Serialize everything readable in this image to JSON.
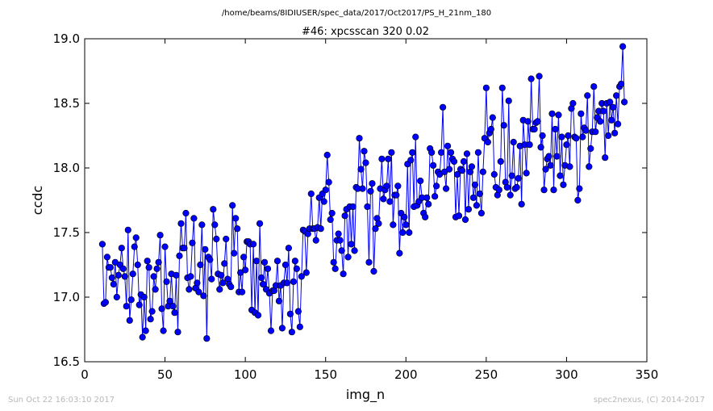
{
  "header": {
    "supertitle": "/home/beams/8IDIUSER/spec_data/2017/Oct2017/PS_H_21nm_180",
    "title": "#46: xpcsscan 320 0.02"
  },
  "footer": {
    "timestamp": "Sun Oct 22 16:03:10 2017",
    "credit": "spec2nexus, (C) 2014-2017"
  },
  "chart_data": {
    "type": "line",
    "xlabel": "img_n",
    "ylabel": "ccdc",
    "xlim": [
      0,
      350
    ],
    "ylim": [
      16.5,
      19.0
    ],
    "xticks": [
      0,
      50,
      100,
      150,
      200,
      250,
      300,
      350
    ],
    "yticks": [
      16.5,
      17.0,
      17.5,
      18.0,
      18.5,
      19.0
    ],
    "xtick_labels": [
      "0",
      "50",
      "100",
      "150",
      "200",
      "250",
      "300",
      "350"
    ],
    "ytick_labels": [
      "16.5",
      "17.0",
      "17.5",
      "18.0",
      "18.5",
      "19.0"
    ],
    "grid": false,
    "line_color": "#0000ff",
    "marker": "circle",
    "series": [
      {
        "x_start": 11,
        "x_step": 1,
        "y": [
          17.41,
          16.95,
          16.96,
          17.31,
          17.23,
          17.23,
          17.15,
          17.1,
          17.27,
          17.0,
          17.17,
          17.25,
          17.38,
          17.22,
          17.16,
          16.93,
          17.52,
          16.82,
          16.98,
          17.18,
          17.39,
          17.46,
          17.25,
          16.94,
          17.02,
          16.69,
          17.0,
          16.74,
          17.28,
          17.23,
          16.83,
          16.89,
          17.16,
          17.06,
          17.22,
          17.27,
          17.48,
          16.91,
          16.74,
          17.39,
          17.12,
          16.93,
          16.97,
          17.18,
          16.93,
          16.88,
          17.17,
          16.73,
          17.32,
          17.57,
          17.38,
          17.38,
          17.65,
          17.15,
          17.06,
          17.16,
          17.42,
          17.61,
          17.07,
          17.11,
          17.04,
          17.25,
          17.56,
          17.01,
          17.37,
          16.68,
          17.31,
          17.29,
          17.14,
          17.68,
          17.56,
          17.45,
          17.18,
          17.06,
          17.17,
          17.11,
          17.26,
          17.45,
          17.14,
          17.1,
          17.08,
          17.71,
          17.34,
          17.61,
          17.53,
          17.04,
          17.19,
          17.04,
          17.31,
          17.21,
          17.43,
          17.43,
          17.41,
          16.9,
          17.41,
          16.88,
          17.28,
          16.86,
          17.57,
          17.15,
          17.1,
          17.27,
          17.06,
          17.22,
          17.03,
          16.74,
          17.05,
          17.05,
          17.09,
          17.28,
          16.97,
          17.09,
          16.76,
          17.11,
          17.25,
          17.11,
          17.38,
          16.87,
          16.73,
          17.12,
          17.28,
          17.22,
          16.89,
          16.77,
          17.16,
          17.52,
          17.51,
          17.19,
          17.49,
          17.53,
          17.8,
          17.53,
          17.53,
          17.44,
          17.54,
          17.77,
          17.53,
          17.8,
          17.74,
          17.83,
          18.1,
          17.89,
          17.6,
          17.65,
          17.27,
          17.22,
          17.44,
          17.49,
          17.44,
          17.36,
          17.18,
          17.63,
          17.68,
          17.31,
          17.7,
          17.41,
          17.7,
          17.36,
          17.85,
          17.84,
          18.23,
          17.99,
          17.84,
          18.13,
          18.04,
          17.7,
          17.27,
          17.82,
          17.88,
          17.2,
          17.53,
          17.61,
          17.57,
          17.84,
          18.07,
          17.76,
          17.83,
          17.86,
          18.07,
          17.74,
          18.12,
          17.56,
          17.79,
          17.79,
          17.86,
          17.34,
          17.65,
          17.5,
          17.62,
          17.56,
          18.03,
          17.5,
          18.06,
          18.12,
          17.7,
          18.24,
          17.71,
          17.74,
          17.9,
          17.77,
          17.65,
          17.62,
          17.77,
          17.72,
          18.15,
          18.12,
          18.02,
          17.78,
          17.86,
          17.97,
          17.95,
          18.12,
          18.47,
          17.97,
          17.84,
          18.17,
          17.99,
          18.12,
          18.07,
          18.05,
          17.62,
          17.95,
          17.63,
          17.99,
          17.98,
          18.05,
          17.6,
          18.11,
          17.68,
          17.97,
          18.01,
          17.77,
          17.87,
          17.71,
          18.12,
          17.8,
          17.65,
          17.97,
          18.23,
          18.62,
          18.2,
          18.27,
          18.3,
          18.39,
          17.95,
          17.85,
          17.79,
          17.83,
          18.05,
          18.62,
          18.33,
          17.89,
          17.85,
          18.52,
          17.79,
          17.94,
          18.2,
          17.84,
          17.85,
          17.92,
          18.17,
          17.72,
          18.37,
          18.18,
          17.96,
          18.36,
          18.18,
          18.69,
          18.3,
          18.3,
          18.35,
          18.36,
          18.71,
          18.16,
          18.25,
          17.83,
          17.99,
          18.07,
          18.09,
          18.02,
          18.42,
          17.83,
          18.3,
          18.09,
          18.41,
          17.94,
          18.24,
          17.87,
          18.02,
          18.18,
          18.25,
          18.01,
          18.46,
          18.5,
          18.24,
          18.23,
          17.75,
          17.84,
          18.42,
          18.24,
          18.31,
          18.29,
          18.56,
          18.01,
          18.15,
          18.28,
          18.63,
          18.28,
          18.39,
          18.44,
          18.36,
          18.5,
          18.44,
          18.08,
          18.5,
          18.25,
          18.51,
          18.37,
          18.47,
          18.27,
          18.56,
          18.34,
          18.63,
          18.65,
          18.94,
          18.51
        ]
      }
    ]
  }
}
